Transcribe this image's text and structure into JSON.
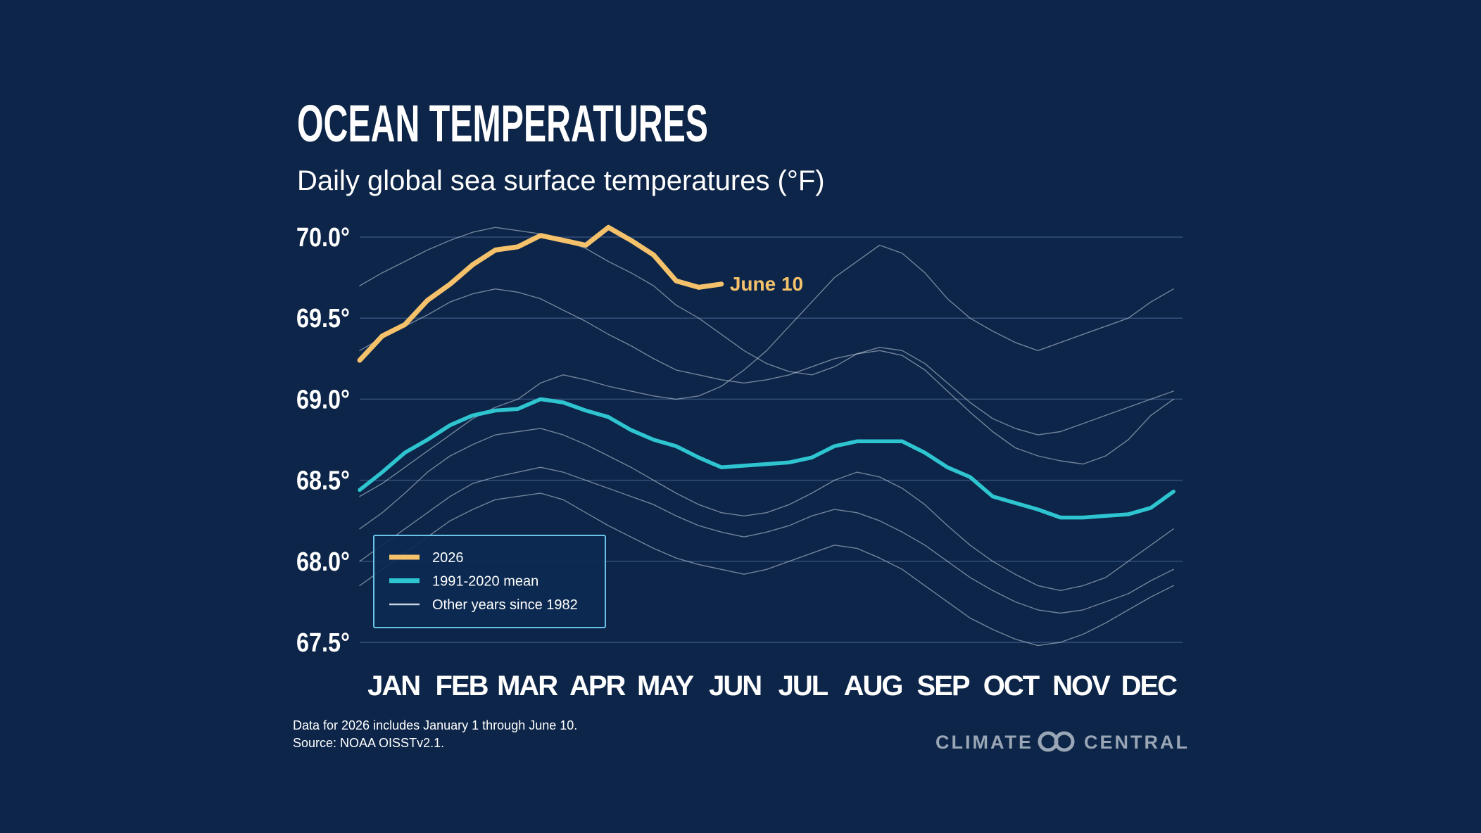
{
  "chart_data": {
    "type": "line",
    "title": "OCEAN TEMPERATURES",
    "subtitle": "Daily global sea surface temperatures (°F)",
    "annotation": "June 10",
    "footnote": [
      "Data for 2026 includes January 1 through June 10.",
      "Source: NOAA OISSTv2.1."
    ],
    "x": [
      1,
      11,
      21,
      31,
      41,
      51,
      61,
      71,
      81,
      91,
      101,
      111,
      121,
      131,
      141,
      151,
      161,
      171,
      181,
      191,
      201,
      211,
      221,
      231,
      241,
      251,
      261,
      271,
      281,
      291,
      301,
      311,
      321,
      331,
      341,
      351,
      361
    ],
    "xlim": [
      1,
      365
    ],
    "xticks": [
      {
        "value": 16,
        "label": "JAN"
      },
      {
        "value": 46,
        "label": "FEB"
      },
      {
        "value": 75,
        "label": "MAR"
      },
      {
        "value": 106,
        "label": "APR"
      },
      {
        "value": 136,
        "label": "MAY"
      },
      {
        "value": 167,
        "label": "JUN"
      },
      {
        "value": 197,
        "label": "JUL"
      },
      {
        "value": 228,
        "label": "AUG"
      },
      {
        "value": 259,
        "label": "SEP"
      },
      {
        "value": 289,
        "label": "OCT"
      },
      {
        "value": 320,
        "label": "NOV"
      },
      {
        "value": 350,
        "label": "DEC"
      }
    ],
    "ylim": [
      67.5,
      70.0
    ],
    "yticks": [
      {
        "value": 67.5,
        "label": "67.5°"
      },
      {
        "value": 68.0,
        "label": "68.0°"
      },
      {
        "value": 68.5,
        "label": "68.5°"
      },
      {
        "value": 69.0,
        "label": "69.0°"
      },
      {
        "value": 69.5,
        "label": "69.5°"
      },
      {
        "value": 70.0,
        "label": "70.0°"
      }
    ],
    "grid": true,
    "legend": "lower left",
    "series": [
      {
        "name": "2026",
        "color": "#f5c26b",
        "values": [
          69.24,
          69.39,
          69.46,
          69.61,
          69.71,
          69.83,
          69.92,
          69.94,
          70.01,
          69.98,
          69.95,
          70.06,
          69.98,
          69.89,
          69.73,
          69.69,
          69.71,
          null,
          null,
          null,
          null,
          null,
          null,
          null,
          null,
          null,
          null,
          null,
          null,
          null,
          null,
          null,
          null,
          null,
          null,
          null,
          null
        ]
      },
      {
        "name": "1991-2020 mean",
        "color": "#2ec4d0",
        "values": [
          68.44,
          68.55,
          68.67,
          68.75,
          68.84,
          68.9,
          68.93,
          68.94,
          69.0,
          68.98,
          68.93,
          68.89,
          68.81,
          68.75,
          68.71,
          68.64,
          68.58,
          68.59,
          68.6,
          68.61,
          68.64,
          68.71,
          68.74,
          68.74,
          68.74,
          68.67,
          68.58,
          68.52,
          68.4,
          68.36,
          68.32,
          68.27,
          68.27,
          68.28,
          68.29,
          68.33,
          68.43
        ]
      },
      {
        "name": "Other years since 1982",
        "color": "#c9d3e0",
        "values": [
          [
            69.7,
            69.78,
            69.85,
            69.92,
            69.98,
            70.03,
            70.06,
            70.04,
            70.02,
            69.98,
            69.93,
            69.85,
            69.78,
            69.7,
            69.58,
            69.5,
            69.4,
            69.3,
            69.22,
            69.17,
            69.15,
            69.2,
            69.28,
            69.32,
            69.3,
            69.22,
            69.1,
            68.98,
            68.88,
            68.82,
            68.78,
            68.8,
            68.85,
            68.9,
            68.95,
            69.0,
            69.05
          ],
          [
            69.3,
            69.38,
            69.45,
            69.52,
            69.6,
            69.65,
            69.68,
            69.66,
            69.62,
            69.55,
            69.48,
            69.4,
            69.33,
            69.25,
            69.18,
            69.15,
            69.12,
            69.1,
            69.12,
            69.15,
            69.2,
            69.25,
            69.28,
            69.3,
            69.27,
            69.18,
            69.05,
            68.92,
            68.8,
            68.7,
            68.65,
            68.62,
            68.6,
            68.65,
            68.75,
            68.9,
            69.0
          ],
          [
            68.4,
            68.48,
            68.58,
            68.68,
            68.78,
            68.88,
            68.95,
            69.0,
            69.1,
            69.15,
            69.12,
            69.08,
            69.05,
            69.02,
            69.0,
            69.02,
            69.08,
            69.18,
            69.3,
            69.45,
            69.6,
            69.75,
            69.85,
            69.95,
            69.9,
            69.78,
            69.62,
            69.5,
            69.42,
            69.35,
            69.3,
            69.35,
            69.4,
            69.45,
            69.5,
            69.6,
            69.68
          ],
          [
            68.0,
            68.1,
            68.2,
            68.3,
            68.4,
            68.48,
            68.52,
            68.55,
            68.58,
            68.55,
            68.5,
            68.45,
            68.4,
            68.35,
            68.28,
            68.22,
            68.18,
            68.15,
            68.18,
            68.22,
            68.28,
            68.32,
            68.3,
            68.25,
            68.18,
            68.1,
            68.0,
            67.9,
            67.82,
            67.75,
            67.7,
            67.68,
            67.7,
            67.75,
            67.8,
            67.88,
            67.95
          ],
          [
            68.2,
            68.3,
            68.42,
            68.55,
            68.65,
            68.72,
            68.78,
            68.8,
            68.82,
            68.78,
            68.72,
            68.65,
            68.58,
            68.5,
            68.42,
            68.35,
            68.3,
            68.28,
            68.3,
            68.35,
            68.42,
            68.5,
            68.55,
            68.52,
            68.45,
            68.35,
            68.22,
            68.1,
            68.0,
            67.92,
            67.85,
            67.82,
            67.85,
            67.9,
            68.0,
            68.1,
            68.2
          ],
          [
            67.85,
            67.95,
            68.05,
            68.15,
            68.25,
            68.32,
            68.38,
            68.4,
            68.42,
            68.38,
            68.3,
            68.22,
            68.15,
            68.08,
            68.02,
            67.98,
            67.95,
            67.92,
            67.95,
            68.0,
            68.05,
            68.1,
            68.08,
            68.02,
            67.95,
            67.85,
            67.75,
            67.65,
            67.58,
            67.52,
            67.48,
            67.5,
            67.55,
            67.62,
            67.7,
            67.78,
            67.85
          ]
        ]
      }
    ]
  },
  "branding": [
    "CLIMATE",
    "CENTRAL"
  ]
}
